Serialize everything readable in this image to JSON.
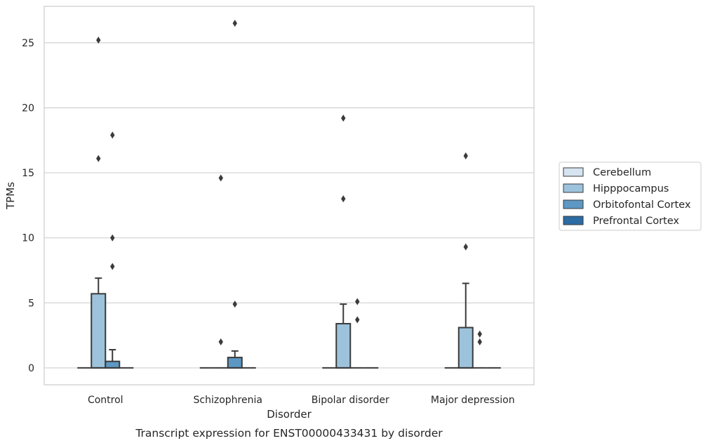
{
  "caption": "Transcript expression for ENST00000433431 by disorder",
  "colors": {
    "Cerebellum": "#d6e4f1",
    "Hipppocampus": "#9dc3dc",
    "Orbitofontal Cortex": "#5d98c4",
    "Prefrontal Cortex": "#2c6ba3",
    "outline": "#3a3a3a",
    "grid": "#d0d0d0"
  },
  "chart_data": {
    "type": "box",
    "title": "",
    "xlabel": "Disorder",
    "ylabel": "TPMs",
    "ylim": [
      -1.3,
      27.8
    ],
    "yticks": [
      0,
      5,
      10,
      15,
      20,
      25
    ],
    "grid": "horizontal",
    "legend_position": "right",
    "categories": [
      "Control",
      "Schizophrenia",
      "Bipolar disorder",
      "Major depression"
    ],
    "series": [
      {
        "name": "Cerebellum",
        "boxes": [
          {
            "q1": 0,
            "median": 0,
            "q3": 0,
            "whisker_low": 0,
            "whisker_high": 0,
            "outliers": []
          },
          {
            "q1": 0,
            "median": 0,
            "q3": 0,
            "whisker_low": 0,
            "whisker_high": 0,
            "outliers": []
          },
          {
            "q1": 0,
            "median": 0,
            "q3": 0,
            "whisker_low": 0,
            "whisker_high": 0,
            "outliers": []
          },
          {
            "q1": 0,
            "median": 0,
            "q3": 0,
            "whisker_low": 0,
            "whisker_high": 0,
            "outliers": []
          }
        ]
      },
      {
        "name": "Hipppocampus",
        "boxes": [
          {
            "q1": 0,
            "median": 0,
            "q3": 5.7,
            "whisker_low": 0,
            "whisker_high": 6.9,
            "outliers": [
              25.2,
              16.1
            ]
          },
          {
            "q1": 0,
            "median": 0,
            "q3": 0,
            "whisker_low": 0,
            "whisker_high": 0,
            "outliers": [
              14.6,
              2.0
            ]
          },
          {
            "q1": 0,
            "median": 0,
            "q3": 3.4,
            "whisker_low": 0,
            "whisker_high": 4.9,
            "outliers": [
              19.2,
              13.0
            ]
          },
          {
            "q1": 0,
            "median": 0,
            "q3": 3.1,
            "whisker_low": 0,
            "whisker_high": 6.5,
            "outliers": [
              16.3,
              9.3
            ]
          }
        ]
      },
      {
        "name": "Orbitofontal Cortex",
        "boxes": [
          {
            "q1": 0,
            "median": 0,
            "q3": 0.5,
            "whisker_low": 0,
            "whisker_high": 1.4,
            "outliers": [
              17.9,
              10.0,
              7.8
            ]
          },
          {
            "q1": 0,
            "median": 0,
            "q3": 0.8,
            "whisker_low": 0,
            "whisker_high": 1.3,
            "outliers": [
              26.5,
              4.9
            ]
          },
          {
            "q1": 0,
            "median": 0,
            "q3": 0,
            "whisker_low": 0,
            "whisker_high": 0,
            "outliers": [
              5.1,
              3.7
            ]
          },
          {
            "q1": 0,
            "median": 0,
            "q3": 0,
            "whisker_low": 0,
            "whisker_high": 0,
            "outliers": [
              2.6,
              2.0
            ]
          }
        ]
      },
      {
        "name": "Prefrontal Cortex",
        "boxes": [
          {
            "q1": 0,
            "median": 0,
            "q3": 0,
            "whisker_low": 0,
            "whisker_high": 0,
            "outliers": []
          },
          {
            "q1": 0,
            "median": 0,
            "q3": 0,
            "whisker_low": 0,
            "whisker_high": 0,
            "outliers": []
          },
          {
            "q1": 0,
            "median": 0,
            "q3": 0,
            "whisker_low": 0,
            "whisker_high": 0,
            "outliers": []
          },
          {
            "q1": 0,
            "median": 0,
            "q3": 0,
            "whisker_low": 0,
            "whisker_high": 0,
            "outliers": []
          }
        ]
      }
    ]
  }
}
